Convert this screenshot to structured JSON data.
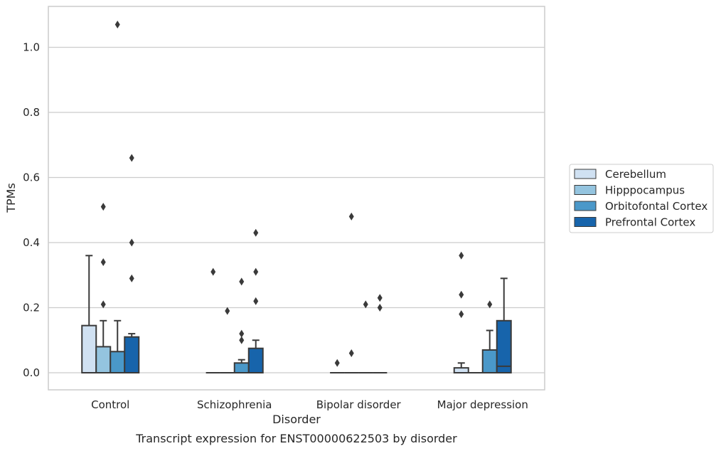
{
  "chart_data": {
    "type": "box",
    "title": "",
    "caption": "Transcript expression for ENST00000622503 by disorder",
    "xlabel": "Disorder",
    "ylabel": "TPMs",
    "ylim": [
      -0.05,
      1.13
    ],
    "yticks": [
      "0.0",
      "0.2",
      "0.4",
      "0.6",
      "0.8",
      "1.0"
    ],
    "grid": "horizontal",
    "legend_position": "right",
    "categories": [
      "Control",
      "Schizophrenia",
      "Bipolar disorder",
      "Major depression"
    ],
    "series": [
      {
        "name": "Cerebellum",
        "color": "#d0e1f2",
        "boxes": [
          {
            "q1": 0,
            "median": 0,
            "q3": 0.145,
            "whisker_low": 0,
            "whisker_high": 0.36,
            "outliers": []
          },
          {
            "q1": 0,
            "median": 0,
            "q3": 0,
            "whisker_low": 0,
            "whisker_high": 0,
            "outliers": [
              0.31
            ]
          },
          {
            "q1": 0,
            "median": 0,
            "q3": 0,
            "whisker_low": 0,
            "whisker_high": 0,
            "outliers": [
              0.03
            ]
          },
          {
            "q1": 0,
            "median": 0,
            "q3": 0.015,
            "whisker_low": 0,
            "whisker_high": 0.03,
            "outliers": [
              0.36,
              0.24,
              0.18
            ]
          }
        ]
      },
      {
        "name": "Hipppocampus",
        "color": "#94c4df",
        "boxes": [
          {
            "q1": 0,
            "median": 0,
            "q3": 0.08,
            "whisker_low": 0,
            "whisker_high": 0.16,
            "outliers": [
              0.51,
              0.34,
              0.21
            ]
          },
          {
            "q1": 0,
            "median": 0,
            "q3": 0,
            "whisker_low": 0,
            "whisker_high": 0,
            "outliers": [
              0.19
            ]
          },
          {
            "q1": 0,
            "median": 0,
            "q3": 0,
            "whisker_low": 0,
            "whisker_high": 0,
            "outliers": [
              0.48,
              0.06
            ]
          },
          {
            "q1": 0,
            "median": 0,
            "q3": 0,
            "whisker_low": 0,
            "whisker_high": 0,
            "outliers": []
          }
        ]
      },
      {
        "name": "Orbitofontal Cortex",
        "color": "#4a98c9",
        "boxes": [
          {
            "q1": 0,
            "median": 0,
            "q3": 0.065,
            "whisker_low": 0,
            "whisker_high": 0.16,
            "outliers": [
              1.07
            ]
          },
          {
            "q1": 0,
            "median": 0,
            "q3": 0.03,
            "whisker_low": 0,
            "whisker_high": 0.04,
            "outliers": [
              0.28,
              0.12,
              0.1
            ]
          },
          {
            "q1": 0,
            "median": 0,
            "q3": 0,
            "whisker_low": 0,
            "whisker_high": 0,
            "outliers": [
              0.21
            ]
          },
          {
            "q1": 0,
            "median": 0,
            "q3": 0.07,
            "whisker_low": 0,
            "whisker_high": 0.13,
            "outliers": [
              0.21
            ]
          }
        ]
      },
      {
        "name": "Prefrontal Cortex",
        "color": "#1764ab",
        "boxes": [
          {
            "q1": 0,
            "median": 0,
            "q3": 0.11,
            "whisker_low": 0,
            "whisker_high": 0.12,
            "outliers": [
              0.66,
              0.4,
              0.29
            ]
          },
          {
            "q1": 0,
            "median": 0,
            "q3": 0.075,
            "whisker_low": 0,
            "whisker_high": 0.1,
            "outliers": [
              0.43,
              0.31,
              0.22
            ]
          },
          {
            "q1": 0,
            "median": 0,
            "q3": 0,
            "whisker_low": 0,
            "whisker_high": 0,
            "outliers": [
              0.23,
              0.2
            ]
          },
          {
            "q1": 0,
            "median": 0.02,
            "q3": 0.16,
            "whisker_low": 0,
            "whisker_high": 0.29,
            "outliers": []
          }
        ]
      }
    ]
  }
}
